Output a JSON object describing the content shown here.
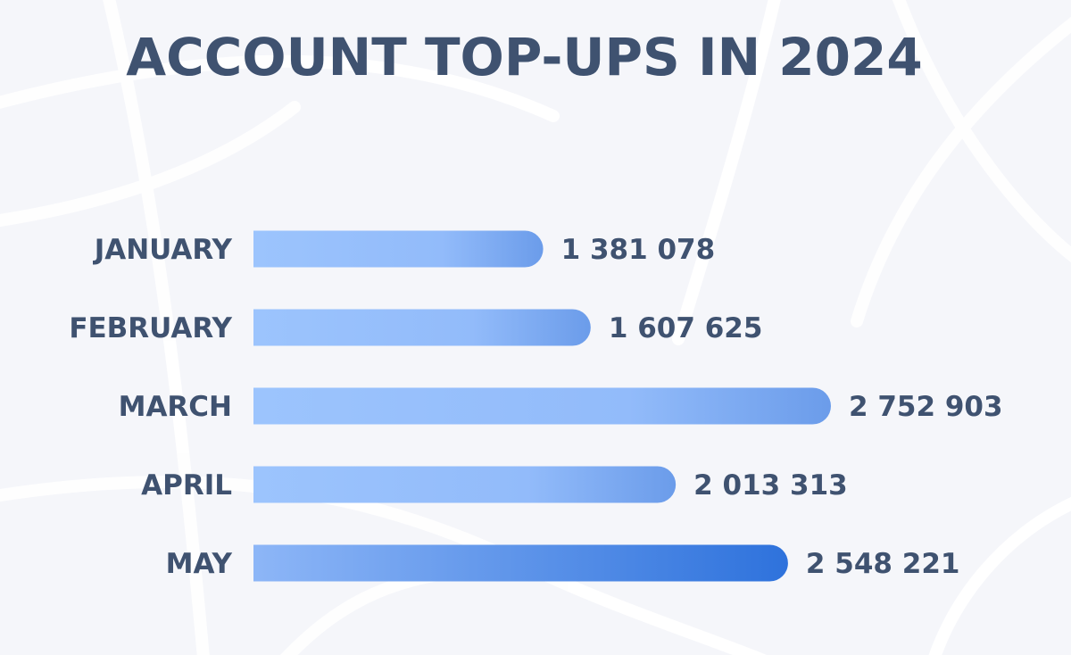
{
  "chart_data": {
    "type": "bar",
    "orientation": "horizontal",
    "title": "ACCOUNT TOP-UPS IN 2024",
    "categories": [
      "JANUARY",
      "FEBRUARY",
      "MARCH",
      "APRIL",
      "MAY"
    ],
    "values": [
      1381078,
      1607625,
      2752903,
      2013313,
      2548221
    ],
    "value_labels": [
      "1 381 078",
      "1 607 625",
      "2 752 903",
      "2 013 313",
      "2 548 221"
    ],
    "highlighted_category": "MAY",
    "xlim": [
      0,
      2752903
    ],
    "grid": false,
    "legend": "none"
  },
  "colors": {
    "text": "#3f5270",
    "highlight_text": "#2e78d8",
    "bar_light": "#9cc4fd",
    "bar_dark": "#6b9cea",
    "highlight_bar_light": "#8db6f7",
    "highlight_bar_dark": "#2e72dc",
    "background": "#f5f6fa"
  }
}
